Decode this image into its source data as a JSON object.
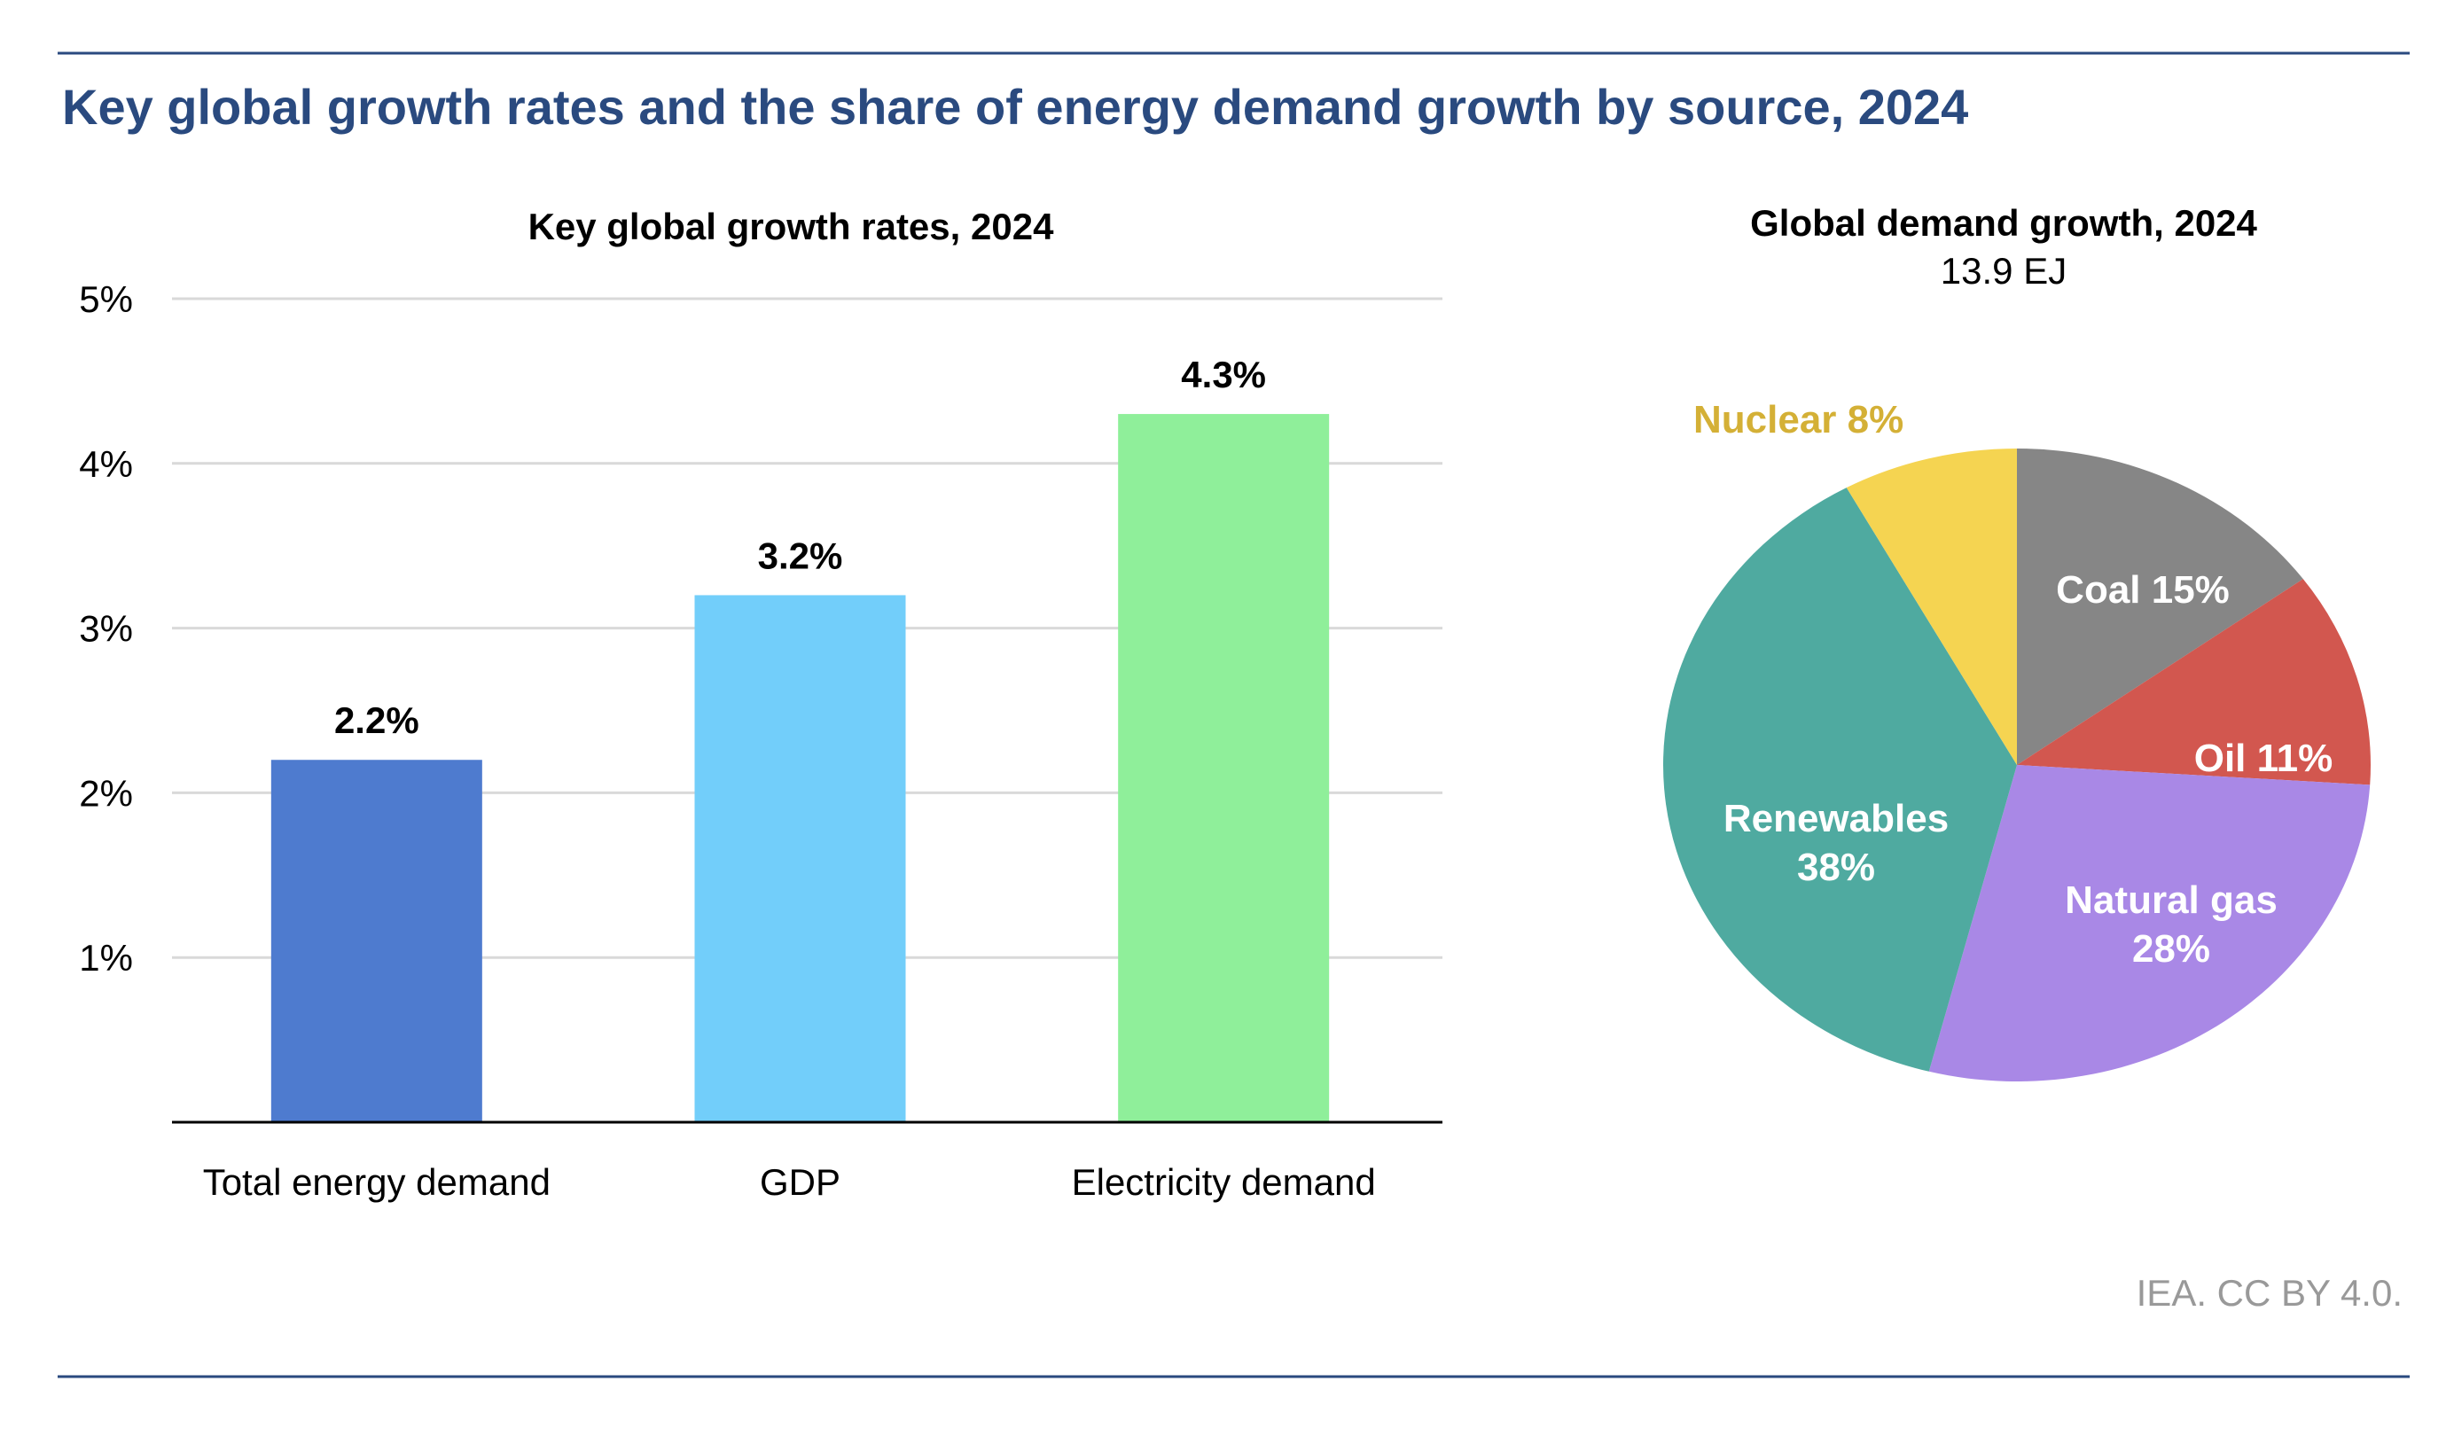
{
  "title": "Key global growth rates and the share of energy demand growth by source, 2024",
  "credit": "IEA. CC BY 4.0.",
  "colors": {
    "title": "#2a4a7f",
    "rule": "#2a4a7f",
    "grid": "#d9d9d9",
    "credit": "#999999"
  },
  "chart_data": [
    {
      "type": "bar",
      "title": "Key global growth rates, 2024",
      "categories": [
        "Total energy demand",
        "GDP",
        "Electricity demand"
      ],
      "values": [
        2.2,
        3.2,
        4.3
      ],
      "data_labels": [
        "2.2%",
        "3.2%",
        "4.3%"
      ],
      "colors": [
        "#4e7bcf",
        "#72cefa",
        "#8fef9a"
      ],
      "ylim": [
        0,
        5
      ],
      "yticks": [
        1,
        2,
        3,
        4,
        5
      ],
      "ytick_labels": [
        "1%",
        "2%",
        "3%",
        "4%",
        "5%"
      ],
      "grid": true,
      "xlabel": "",
      "ylabel": ""
    },
    {
      "type": "pie",
      "title": "Global demand growth, 2024",
      "subtitle": "13.9 EJ",
      "slices": [
        {
          "name": "Coal",
          "value": 15,
          "label": "Coal 15%",
          "color": "#868686"
        },
        {
          "name": "Oil",
          "value": 11,
          "label": "Oil 11%",
          "color": "#d2574f"
        },
        {
          "name": "Natural gas",
          "value": 28,
          "label_line1": "Natural gas",
          "label_line2": "28%",
          "color": "#a988e6"
        },
        {
          "name": "Renewables",
          "value": 38,
          "label_line1": "Renewables",
          "label_line2": "38%",
          "color": "#4faaa0"
        },
        {
          "name": "Nuclear",
          "value": 8,
          "label": "Nuclear 8%",
          "color": "#f5d451",
          "label_color": "#d4b036"
        }
      ],
      "start": "top",
      "direction": "clockwise"
    }
  ]
}
